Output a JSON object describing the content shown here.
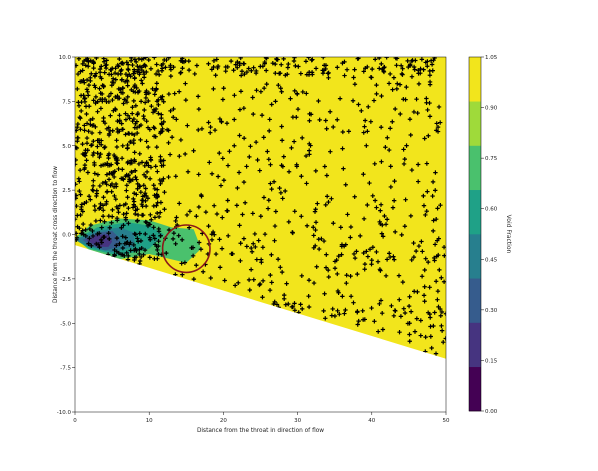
{
  "chart_data": {
    "type": "contour",
    "title": "",
    "xlabel": "Distance from the throat in direction of flow",
    "ylabel": "Distance from the throat cross direction to flow",
    "xlim": [
      0,
      50
    ],
    "ylim": [
      -10,
      10
    ],
    "x_ticks": [
      "0",
      "10",
      "20",
      "30",
      "40",
      "50"
    ],
    "y_ticks": [
      "10.0",
      "7.5",
      "5.0",
      "2.5",
      "0.0",
      "-2.5",
      "-5.0",
      "-7.5",
      "-10.0"
    ],
    "grid": false,
    "colorbar": {
      "label": "Void Fraction",
      "ticks": [
        "1.05",
        "0.90",
        "0.75",
        "0.60",
        "0.45",
        "0.30",
        "0.15",
        "0.00"
      ],
      "levels": [
        0.0,
        0.15,
        0.3,
        0.45,
        0.6,
        0.75,
        0.9,
        1.05
      ],
      "colors": [
        "#440154",
        "#463480",
        "#365c8d",
        "#277f8e",
        "#1fa187",
        "#4ac16d",
        "#9fda3a",
        "#f2e51c"
      ]
    },
    "domain": {
      "description_points": [
        [
          0,
          10
        ],
        [
          50,
          10
        ],
        [
          50,
          -7.0
        ],
        [
          0,
          -0.6
        ]
      ]
    },
    "low_void_region": {
      "x_range": [
        0,
        16
      ],
      "y_range": [
        -1.5,
        0.9
      ],
      "min_value": 0.15,
      "highlighted_circle": {
        "x": 15.0,
        "y": -0.8,
        "r": 3.2
      }
    },
    "markers": {
      "symbol": "+",
      "color": "#000000",
      "description": "node markers densely scattered over the flow domain"
    }
  }
}
